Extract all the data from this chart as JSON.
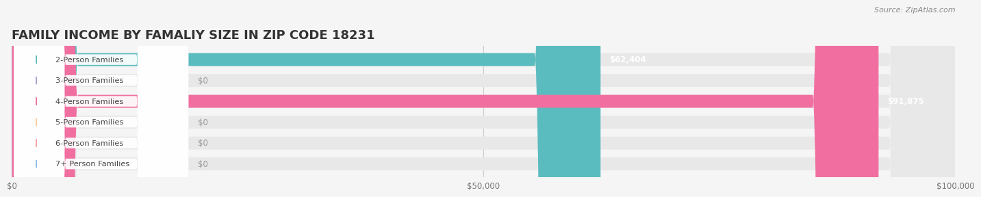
{
  "title": "FAMILY INCOME BY FAMALIY SIZE IN ZIP CODE 18231",
  "source": "Source: ZipAtlas.com",
  "categories": [
    "2-Person Families",
    "3-Person Families",
    "4-Person Families",
    "5-Person Families",
    "6-Person Families",
    "7+ Person Families"
  ],
  "values": [
    62404,
    0,
    91875,
    0,
    0,
    0
  ],
  "bar_colors": [
    "#5bbcbf",
    "#a89fce",
    "#f06fa0",
    "#f8c99a",
    "#f4a0a0",
    "#90bce0"
  ],
  "xlim": [
    0,
    100000
  ],
  "xticks": [
    0,
    50000,
    100000
  ],
  "xtick_labels": [
    "$0",
    "$50,000",
    "$100,000"
  ],
  "background_color": "#f5f5f5",
  "bar_background": "#e8e8e8",
  "title_fontsize": 13,
  "bar_height": 0.62,
  "value_labels": [
    "$62,404",
    "$0",
    "$91,875",
    "$0",
    "$0",
    "$0"
  ]
}
